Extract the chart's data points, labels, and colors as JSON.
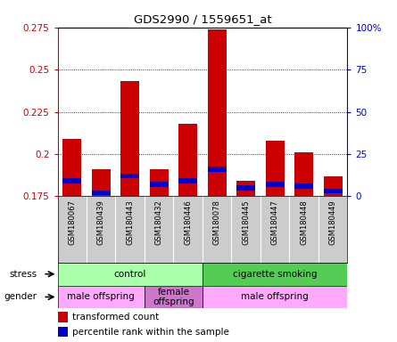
{
  "title": "GDS2990 / 1559651_at",
  "samples": [
    "GSM180067",
    "GSM180439",
    "GSM180443",
    "GSM180432",
    "GSM180446",
    "GSM180078",
    "GSM180445",
    "GSM180447",
    "GSM180448",
    "GSM180449"
  ],
  "red_values": [
    0.209,
    0.191,
    0.243,
    0.191,
    0.218,
    0.274,
    0.184,
    0.208,
    0.201,
    0.187
  ],
  "blue_values": [
    0.184,
    0.177,
    0.187,
    0.182,
    0.184,
    0.191,
    0.18,
    0.182,
    0.181,
    0.178
  ],
  "y_min": 0.175,
  "y_max": 0.275,
  "yticks_left": [
    0.175,
    0.2,
    0.225,
    0.25,
    0.275
  ],
  "yticks_right_pct": [
    0,
    25,
    50,
    75,
    100
  ],
  "ytick_right_labels": [
    "0",
    "25",
    "50",
    "75",
    "100%"
  ],
  "stress_groups": [
    {
      "label": "control",
      "start": 0,
      "end": 5,
      "color": "#aaffaa"
    },
    {
      "label": "cigarette smoking",
      "start": 5,
      "end": 10,
      "color": "#55cc55"
    }
  ],
  "gender_groups": [
    {
      "label": "male offspring",
      "start": 0,
      "end": 3,
      "color": "#ffaaff"
    },
    {
      "label": "female\noffspring",
      "start": 3,
      "end": 5,
      "color": "#cc77cc"
    },
    {
      "label": "male offspring",
      "start": 5,
      "end": 10,
      "color": "#ffaaff"
    }
  ],
  "bar_color_red": "#cc0000",
  "bar_color_blue": "#0000cc",
  "bar_width": 0.65,
  "background_color": "#ffffff",
  "left_axis_color": "#cc0000",
  "right_axis_color": "#0000cc",
  "xtick_bg_color": "#cccccc",
  "grid_dotted_color": "#000000",
  "blue_bar_height": 0.003,
  "stress_label_color": "#000000",
  "gender_label_color": "#000000"
}
